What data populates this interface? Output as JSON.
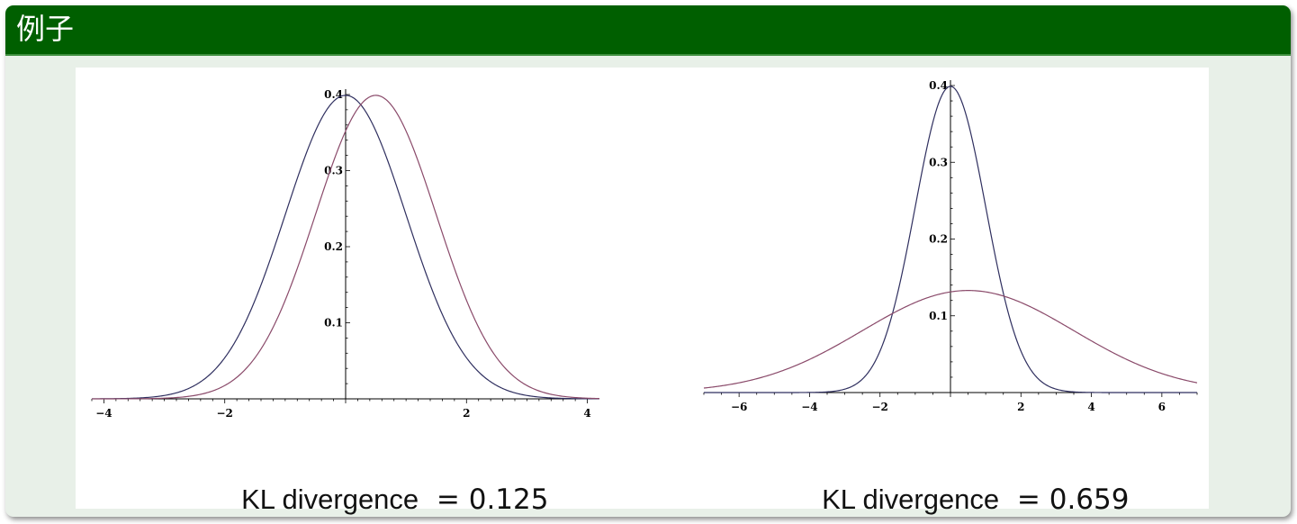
{
  "block": {
    "title": "例子",
    "title_bg": "#005f00",
    "body_bg": "#e8f0e8"
  },
  "chart_data": [
    {
      "type": "line",
      "title": "",
      "xlabel": "",
      "ylabel": "",
      "xlim": [
        -4.2,
        4.2
      ],
      "ylim": [
        0,
        0.4
      ],
      "x_ticks": [
        -4,
        -2,
        2,
        4
      ],
      "y_ticks": [
        0.1,
        0.2,
        0.3,
        0.4
      ],
      "grid": false,
      "series": [
        {
          "color": "#2f2f5f",
          "mean": 0,
          "sd": 1
        },
        {
          "color": "#8a4a6a",
          "mean": 0.5,
          "sd": 1
        }
      ],
      "annotation": {
        "label": "KL divergence",
        "value": "= 0.125"
      }
    },
    {
      "type": "line",
      "title": "",
      "xlabel": "",
      "ylabel": "",
      "xlim": [
        -7,
        7
      ],
      "ylim": [
        0,
        0.4
      ],
      "x_ticks": [
        -6,
        -4,
        -2,
        2,
        4,
        6
      ],
      "y_ticks": [
        0.1,
        0.2,
        0.3,
        0.4
      ],
      "grid": false,
      "series": [
        {
          "color": "#2f2f5f",
          "mean": 0,
          "sd": 1
        },
        {
          "color": "#8a4a6a",
          "mean": 0.5,
          "sd": 3
        }
      ],
      "annotation": {
        "label": "KL divergence",
        "value": "= 0.659"
      }
    }
  ]
}
